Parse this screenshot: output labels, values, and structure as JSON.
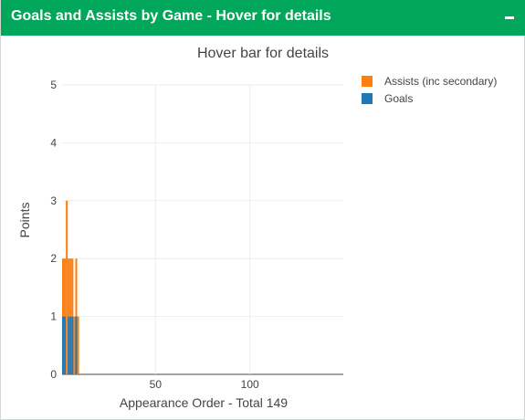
{
  "header": {
    "title": "Goals and Assists by Game - Hover for details",
    "collapse_icon": "minus-icon"
  },
  "colors": {
    "assists": "#ff7f0e",
    "goals": "#1f77b4",
    "header": "#00a65a"
  },
  "chart_data": {
    "type": "bar",
    "stacked": true,
    "title": "Hover bar for details",
    "xlabel": "Appearance Order - Total 149",
    "ylabel": "Points",
    "xlim": [
      0.5,
      149.5
    ],
    "ylim": [
      0,
      5
    ],
    "xticks": [
      50,
      100
    ],
    "yticks": [
      0,
      1,
      2,
      3,
      4,
      5
    ],
    "grid": true,
    "legend_position": "top-right",
    "series": [
      {
        "name": "Goals",
        "values": [
          1,
          1,
          0,
          1,
          1,
          1,
          0,
          1,
          0,
          0,
          0,
          0,
          0,
          0,
          0,
          0,
          0,
          0,
          0,
          0,
          0,
          0,
          0,
          0,
          0,
          0,
          0,
          0,
          0,
          0,
          0,
          0,
          0,
          0,
          0,
          0,
          0,
          0,
          0,
          0,
          0,
          0,
          0,
          0,
          0,
          0,
          0,
          0,
          0,
          0,
          0,
          0,
          0,
          0,
          0,
          0,
          0,
          0,
          0,
          0,
          0,
          0,
          0,
          0,
          0,
          0,
          0,
          0,
          0,
          0,
          0,
          0,
          0,
          0,
          0,
          0,
          0,
          0,
          0,
          0,
          0,
          0,
          0,
          0,
          0,
          0,
          0,
          0,
          0,
          0,
          0,
          0,
          0,
          0,
          0,
          0,
          0,
          0,
          0,
          0,
          0,
          0,
          0,
          0,
          0,
          0,
          0,
          0,
          0,
          0,
          0,
          0,
          0,
          0,
          0,
          0,
          0,
          0,
          0,
          0,
          0,
          0,
          0,
          0,
          0,
          0,
          0,
          0,
          0,
          0,
          0,
          0,
          0,
          0,
          0,
          0,
          0,
          0,
          0,
          0,
          0,
          0,
          0,
          0,
          0,
          0,
          0,
          0,
          0
        ]
      },
      {
        "name": "Assists (inc secondary)",
        "values": [
          1,
          1,
          3,
          1,
          1,
          1,
          1,
          1,
          1,
          0,
          0,
          0,
          0,
          0,
          0,
          0,
          0,
          0,
          0,
          0,
          0,
          0,
          0,
          0,
          0,
          0,
          0,
          0,
          0,
          0,
          0,
          0,
          0,
          0,
          0,
          0,
          0,
          0,
          0,
          0,
          0,
          0,
          0,
          0,
          0,
          0,
          0,
          0,
          0,
          0,
          0,
          0,
          0,
          0,
          0,
          0,
          0,
          0,
          0,
          0,
          0,
          0,
          0,
          0,
          0,
          0,
          0,
          0,
          0,
          0,
          0,
          0,
          0,
          0,
          0,
          0,
          0,
          0,
          0,
          0,
          0,
          0,
          0,
          0,
          0,
          0,
          0,
          0,
          0,
          0,
          0,
          0,
          0,
          0,
          0,
          0,
          0,
          0,
          0,
          0,
          0,
          0,
          0,
          0,
          0,
          0,
          0,
          0,
          0,
          0,
          0,
          0,
          0,
          0,
          0,
          0,
          0,
          0,
          0,
          0,
          0,
          0,
          0,
          0,
          0,
          0,
          0,
          0,
          0,
          0,
          0,
          0,
          0,
          0,
          0,
          0,
          0,
          0,
          0,
          0,
          0,
          0,
          0,
          0,
          0,
          0,
          0,
          0,
          0
        ]
      }
    ]
  }
}
